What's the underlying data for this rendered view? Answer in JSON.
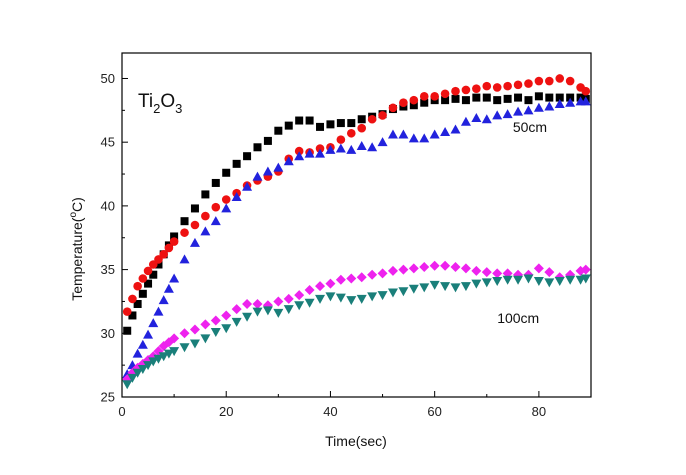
{
  "chart_data": {
    "type": "scatter",
    "xlabel": "Time(sec)",
    "ylabel": {
      "before": "Temperature(",
      "sup": "o",
      "after": "C)"
    },
    "xlim": [
      0,
      90
    ],
    "ylim": [
      25,
      52
    ],
    "xticks": [
      0,
      20,
      40,
      60,
      80
    ],
    "yticks": [
      25,
      30,
      35,
      40,
      45,
      50
    ],
    "grid": false,
    "sample_label": {
      "a": "Ti",
      "sub1": "2",
      "b": "O",
      "sub2": "3"
    },
    "annotations": [
      {
        "text": "50cm",
        "x": 75,
        "y": 45.8
      },
      {
        "text": "100cm",
        "x": 72,
        "y": 30.8
      }
    ],
    "series": [
      {
        "color": "#000000",
        "marker": "square",
        "x": [
          1,
          2,
          3,
          4,
          5,
          6,
          7,
          8,
          9,
          10,
          12,
          14,
          16,
          18,
          20,
          22,
          24,
          26,
          28,
          30,
          32,
          34,
          36,
          38,
          40,
          42,
          44,
          46,
          48,
          50,
          52,
          54,
          56,
          58,
          60,
          62,
          64,
          66,
          68,
          70,
          72,
          74,
          76,
          78,
          80,
          82,
          84,
          86,
          88,
          89
        ],
        "y": [
          30.2,
          31.4,
          32.3,
          33.1,
          33.9,
          34.6,
          35.4,
          36.2,
          36.9,
          37.6,
          38.8,
          39.8,
          40.9,
          41.8,
          42.6,
          43.3,
          43.9,
          44.6,
          45.1,
          45.9,
          46.3,
          46.7,
          46.7,
          46.2,
          46.4,
          46.5,
          46.5,
          46.8,
          47.0,
          47.2,
          47.6,
          47.8,
          47.9,
          48.1,
          48.3,
          48.3,
          48.4,
          48.3,
          48.5,
          48.5,
          48.3,
          48.4,
          48.5,
          48.3,
          48.6,
          48.5,
          48.5,
          48.5,
          48.5,
          48.4
        ]
      },
      {
        "color": "#ee1111",
        "marker": "circle",
        "x": [
          1,
          2,
          3,
          4,
          5,
          6,
          7,
          8,
          9,
          10,
          12,
          14,
          16,
          18,
          20,
          22,
          24,
          26,
          28,
          30,
          32,
          34,
          36,
          38,
          40,
          42,
          44,
          46,
          48,
          50,
          52,
          54,
          56,
          58,
          60,
          62,
          64,
          66,
          68,
          70,
          72,
          74,
          76,
          78,
          80,
          82,
          84,
          86,
          88,
          89
        ],
        "y": [
          31.7,
          32.7,
          33.7,
          34.3,
          34.9,
          35.4,
          35.8,
          36.2,
          36.7,
          37.2,
          37.9,
          38.5,
          39.2,
          39.9,
          40.5,
          41.0,
          41.6,
          42.0,
          42.3,
          42.7,
          43.7,
          44.3,
          44.2,
          44.5,
          44.6,
          45.2,
          45.7,
          46.1,
          46.8,
          47.1,
          47.7,
          48.1,
          48.3,
          48.6,
          48.6,
          48.8,
          49.0,
          49.1,
          49.2,
          49.4,
          49.3,
          49.4,
          49.5,
          49.6,
          49.8,
          49.8,
          50.0,
          49.8,
          49.3,
          49.0
        ]
      },
      {
        "color": "#2222dd",
        "marker": "triangle-up",
        "x": [
          1,
          2,
          3,
          4,
          5,
          6,
          7,
          8,
          9,
          10,
          12,
          14,
          16,
          18,
          20,
          22,
          24,
          26,
          28,
          30,
          32,
          34,
          36,
          38,
          40,
          42,
          44,
          46,
          48,
          50,
          52,
          54,
          56,
          58,
          60,
          62,
          64,
          66,
          68,
          70,
          72,
          74,
          76,
          78,
          80,
          82,
          84,
          86,
          88,
          89
        ],
        "y": [
          26.8,
          27.5,
          28.4,
          29.1,
          29.9,
          30.8,
          31.7,
          32.6,
          33.5,
          34.3,
          35.8,
          37.1,
          38.0,
          38.8,
          39.8,
          40.7,
          41.5,
          42.3,
          42.7,
          43.0,
          43.5,
          43.9,
          44.1,
          44.1,
          44.4,
          44.5,
          44.4,
          44.7,
          44.6,
          45.0,
          45.6,
          45.6,
          45.3,
          45.3,
          45.6,
          45.8,
          46.0,
          46.6,
          46.9,
          46.8,
          47.1,
          47.2,
          47.4,
          47.5,
          47.7,
          47.8,
          48.0,
          48.1,
          48.2,
          48.2
        ]
      },
      {
        "color": "#ee22ee",
        "marker": "diamond",
        "x": [
          1,
          2,
          3,
          4,
          5,
          6,
          7,
          8,
          9,
          10,
          12,
          14,
          16,
          18,
          20,
          22,
          24,
          26,
          28,
          30,
          32,
          34,
          36,
          38,
          40,
          42,
          44,
          46,
          48,
          50,
          52,
          54,
          56,
          58,
          60,
          62,
          64,
          66,
          68,
          70,
          72,
          74,
          76,
          78,
          80,
          82,
          84,
          86,
          88,
          89
        ],
        "y": [
          26.4,
          26.9,
          27.3,
          27.6,
          27.9,
          28.2,
          28.6,
          29.0,
          29.3,
          29.6,
          30.0,
          30.3,
          30.7,
          31.0,
          31.4,
          31.9,
          32.3,
          32.3,
          32.2,
          32.5,
          32.7,
          33.0,
          33.4,
          33.7,
          33.9,
          34.2,
          34.3,
          34.4,
          34.6,
          34.7,
          34.9,
          35.0,
          35.1,
          35.2,
          35.3,
          35.3,
          35.2,
          35.1,
          34.9,
          34.8,
          34.7,
          34.7,
          34.6,
          34.6,
          35.1,
          34.8,
          34.4,
          34.6,
          34.9,
          35.0
        ]
      },
      {
        "color": "#1a7f7a",
        "marker": "triangle-down",
        "x": [
          1,
          2,
          3,
          4,
          5,
          6,
          7,
          8,
          9,
          10,
          12,
          14,
          16,
          18,
          20,
          22,
          24,
          26,
          28,
          30,
          32,
          34,
          36,
          38,
          40,
          42,
          44,
          46,
          48,
          50,
          52,
          54,
          56,
          58,
          60,
          62,
          64,
          66,
          68,
          70,
          72,
          74,
          76,
          78,
          80,
          82,
          84,
          86,
          88,
          89
        ],
        "y": [
          26.0,
          26.5,
          26.9,
          27.2,
          27.5,
          27.8,
          28.0,
          28.2,
          28.4,
          28.6,
          28.9,
          29.2,
          29.6,
          30.1,
          30.4,
          30.9,
          31.3,
          31.7,
          31.8,
          31.6,
          31.9,
          32.2,
          32.4,
          32.7,
          32.9,
          32.8,
          32.6,
          32.7,
          32.9,
          33.0,
          33.2,
          33.3,
          33.5,
          33.6,
          33.8,
          33.7,
          33.6,
          33.7,
          33.9,
          34.0,
          34.1,
          34.2,
          34.2,
          34.3,
          34.1,
          34.0,
          34.1,
          34.2,
          34.2,
          34.3
        ]
      }
    ]
  }
}
